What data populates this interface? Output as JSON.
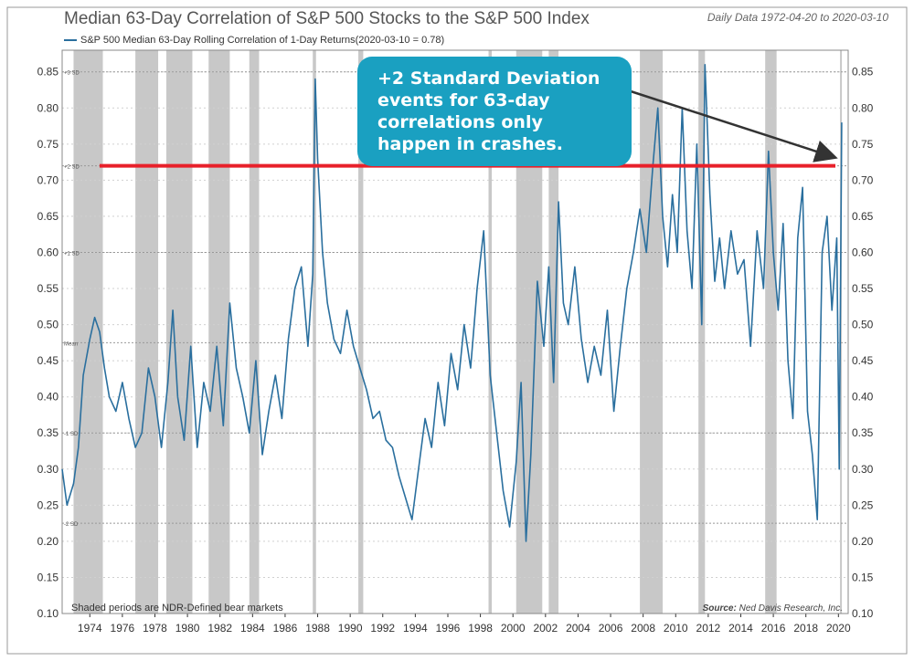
{
  "header": {
    "title": "Median 63-Day Correlation of S&P 500 Stocks to the S&P 500 Index",
    "date_range": "Daily Data 1972-04-20 to 2020-03-10"
  },
  "legend": {
    "series_label": "S&P 500 Median 63-Day Rolling Correlation of 1-Day Returns(2020-03-10 = 0.78)"
  },
  "callout": {
    "text": "+2 Standard Deviation events for 63-day correlations only happen in crashes."
  },
  "footer": {
    "shaded_note": "Shaded periods are NDR-Defined bear markets",
    "source_label": "Source:",
    "source_name": "Ned Davis Research, Inc."
  },
  "colors": {
    "series": "#2a6f9e",
    "threshold": "#e8202a",
    "callout_bg": "#1aa0c1",
    "shade": "#c8c8c8",
    "arrow": "#333333"
  },
  "chart_data": {
    "type": "line",
    "title": "Median 63-Day Correlation of S&P 500 Stocks to the S&P 500 Index",
    "xlabel": "",
    "ylabel": "",
    "xlim": [
      1972.3,
      2020.6
    ],
    "ylim": [
      0.1,
      0.88
    ],
    "y_ticks": [
      "0.10",
      "0.15",
      "0.20",
      "0.25",
      "0.30",
      "0.35",
      "0.40",
      "0.45",
      "0.50",
      "0.55",
      "0.60",
      "0.65",
      "0.70",
      "0.75",
      "0.80",
      "0.85"
    ],
    "x_ticks": [
      "1974",
      "1976",
      "1978",
      "1980",
      "1982",
      "1984",
      "1986",
      "1988",
      "1990",
      "1992",
      "1994",
      "1996",
      "1998",
      "2000",
      "2002",
      "2004",
      "2006",
      "2008",
      "2010",
      "2012",
      "2014",
      "2016",
      "2018",
      "2020"
    ],
    "reference_lines": [
      {
        "label": "+3 SD",
        "value": 0.85
      },
      {
        "label": "+2 SD",
        "value": 0.72
      },
      {
        "label": "+1 SD",
        "value": 0.6
      },
      {
        "label": "Mean",
        "value": 0.475
      },
      {
        "label": "-1 SD",
        "value": 0.35
      },
      {
        "label": "-2 SD",
        "value": 0.225
      }
    ],
    "threshold_line": {
      "label": "+2 SD",
      "value": 0.72,
      "from": 1974.6
    },
    "bear_markets": [
      [
        1973.0,
        1974.8
      ],
      [
        1976.8,
        1978.2
      ],
      [
        1978.7,
        1980.3
      ],
      [
        1981.3,
        1982.6
      ],
      [
        1983.8,
        1984.4
      ],
      [
        1987.7,
        1987.9
      ],
      [
        1990.5,
        1990.8
      ],
      [
        1998.5,
        1998.7
      ],
      [
        2000.2,
        2001.8
      ],
      [
        2002.2,
        2002.8
      ],
      [
        2007.8,
        2009.2
      ],
      [
        2011.4,
        2011.8
      ],
      [
        2015.5,
        2016.2
      ],
      [
        2020.1,
        2020.2
      ]
    ],
    "series": [
      {
        "name": "S&P 500 Median 63-Day Rolling Correlation of 1-Day Returns",
        "last_value": 0.78,
        "x": [
          1972.3,
          1972.6,
          1973.0,
          1973.3,
          1973.6,
          1974.0,
          1974.3,
          1974.6,
          1974.9,
          1975.2,
          1975.6,
          1976.0,
          1976.4,
          1976.8,
          1977.2,
          1977.6,
          1978.0,
          1978.4,
          1978.8,
          1979.1,
          1979.4,
          1979.8,
          1980.2,
          1980.6,
          1981.0,
          1981.4,
          1981.8,
          1982.2,
          1982.6,
          1983.0,
          1983.4,
          1983.8,
          1984.2,
          1984.6,
          1985.0,
          1985.4,
          1985.8,
          1986.2,
          1986.6,
          1987.0,
          1987.4,
          1987.7,
          1987.85,
          1988.0,
          1988.3,
          1988.6,
          1989.0,
          1989.4,
          1989.8,
          1990.2,
          1990.6,
          1991.0,
          1991.4,
          1991.8,
          1992.2,
          1992.6,
          1993.0,
          1993.4,
          1993.8,
          1994.2,
          1994.6,
          1995.0,
          1995.4,
          1995.8,
          1996.2,
          1996.6,
          1997.0,
          1997.4,
          1997.8,
          1998.2,
          1998.6,
          1999.0,
          1999.4,
          1999.8,
          2000.2,
          2000.5,
          2000.8,
          2001.1,
          2001.5,
          2001.9,
          2002.2,
          2002.5,
          2002.8,
          2003.1,
          2003.4,
          2003.8,
          2004.2,
          2004.6,
          2005.0,
          2005.4,
          2005.8,
          2006.2,
          2006.6,
          2007.0,
          2007.4,
          2007.8,
          2008.2,
          2008.6,
          2008.9,
          2009.2,
          2009.5,
          2009.8,
          2010.1,
          2010.4,
          2010.7,
          2011.0,
          2011.3,
          2011.6,
          2011.8,
          2012.1,
          2012.4,
          2012.7,
          2013.0,
          2013.4,
          2013.8,
          2014.2,
          2014.6,
          2015.0,
          2015.4,
          2015.7,
          2016.0,
          2016.3,
          2016.6,
          2016.9,
          2017.2,
          2017.5,
          2017.8,
          2018.1,
          2018.4,
          2018.7,
          2019.0,
          2019.3,
          2019.6,
          2019.9,
          2020.05,
          2020.2
        ],
        "y": [
          0.3,
          0.25,
          0.28,
          0.33,
          0.43,
          0.48,
          0.51,
          0.49,
          0.44,
          0.4,
          0.38,
          0.42,
          0.37,
          0.33,
          0.35,
          0.44,
          0.4,
          0.33,
          0.42,
          0.52,
          0.4,
          0.34,
          0.47,
          0.33,
          0.42,
          0.38,
          0.47,
          0.36,
          0.53,
          0.44,
          0.4,
          0.35,
          0.45,
          0.32,
          0.38,
          0.43,
          0.37,
          0.48,
          0.55,
          0.58,
          0.47,
          0.57,
          0.84,
          0.73,
          0.6,
          0.53,
          0.48,
          0.46,
          0.52,
          0.47,
          0.44,
          0.41,
          0.37,
          0.38,
          0.34,
          0.33,
          0.29,
          0.26,
          0.23,
          0.3,
          0.37,
          0.33,
          0.42,
          0.36,
          0.46,
          0.41,
          0.5,
          0.44,
          0.55,
          0.63,
          0.43,
          0.35,
          0.27,
          0.22,
          0.31,
          0.42,
          0.2,
          0.32,
          0.56,
          0.47,
          0.58,
          0.42,
          0.67,
          0.53,
          0.5,
          0.58,
          0.48,
          0.42,
          0.47,
          0.43,
          0.52,
          0.38,
          0.47,
          0.55,
          0.6,
          0.66,
          0.6,
          0.72,
          0.8,
          0.65,
          0.58,
          0.68,
          0.6,
          0.8,
          0.63,
          0.55,
          0.75,
          0.5,
          0.86,
          0.68,
          0.56,
          0.62,
          0.55,
          0.63,
          0.57,
          0.59,
          0.47,
          0.63,
          0.55,
          0.74,
          0.6,
          0.52,
          0.64,
          0.45,
          0.37,
          0.62,
          0.69,
          0.38,
          0.32,
          0.23,
          0.6,
          0.65,
          0.52,
          0.62,
          0.3,
          0.78
        ]
      }
    ]
  }
}
